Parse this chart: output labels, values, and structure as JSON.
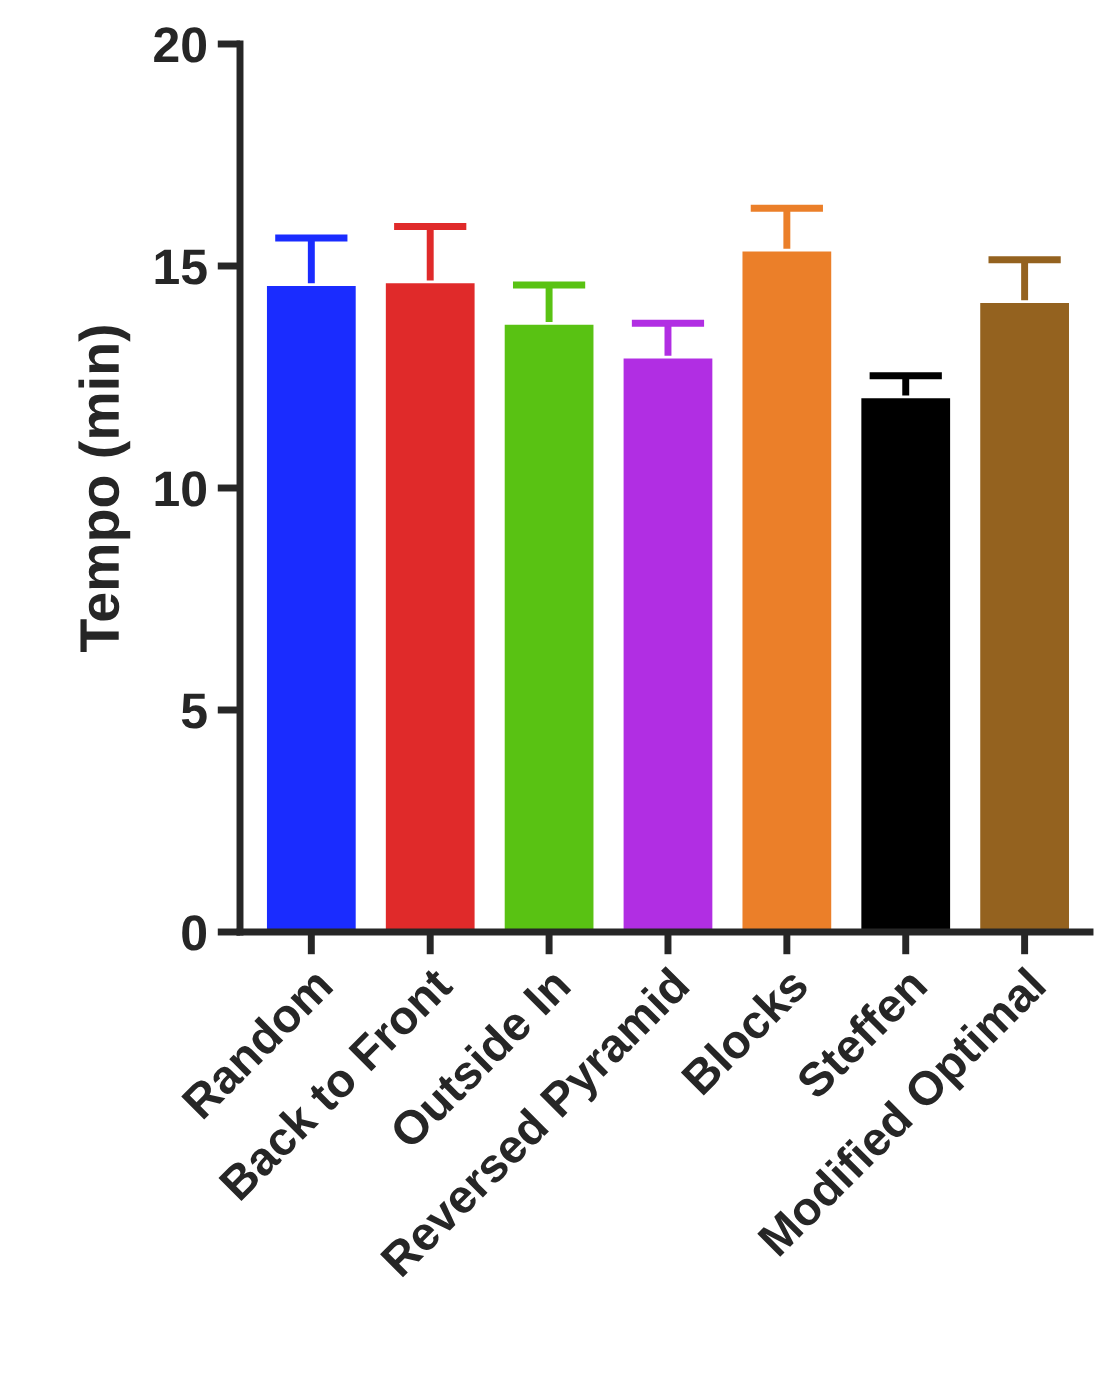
{
  "chart_data": {
    "type": "bar",
    "ylabel": "Tempo (min)",
    "categories": [
      "Random",
      "Back to Front",
      "Outside In",
      "Reversed Pyramid",
      "Blocks",
      "Steffen",
      "Modified Optimal"
    ],
    "values": [
      14.58,
      14.64,
      13.71,
      12.95,
      15.36,
      12.05,
      14.2
    ],
    "colors": [
      "#1a2cff",
      "#e02a2a",
      "#59c213",
      "#b12ee3",
      "#eb7f29",
      "#000000",
      "#94621f"
    ],
    "errors": [
      [
        14.58,
        15.63
      ],
      [
        14.64,
        15.89
      ],
      [
        13.71,
        14.57
      ],
      [
        12.95,
        13.71
      ],
      [
        15.36,
        16.3
      ],
      [
        12.05,
        12.53
      ],
      [
        14.2,
        15.14
      ]
    ],
    "ylim": [
      0,
      20
    ],
    "yticks": [
      0,
      5,
      10,
      15,
      20
    ],
    "grid": false,
    "legend": false
  }
}
